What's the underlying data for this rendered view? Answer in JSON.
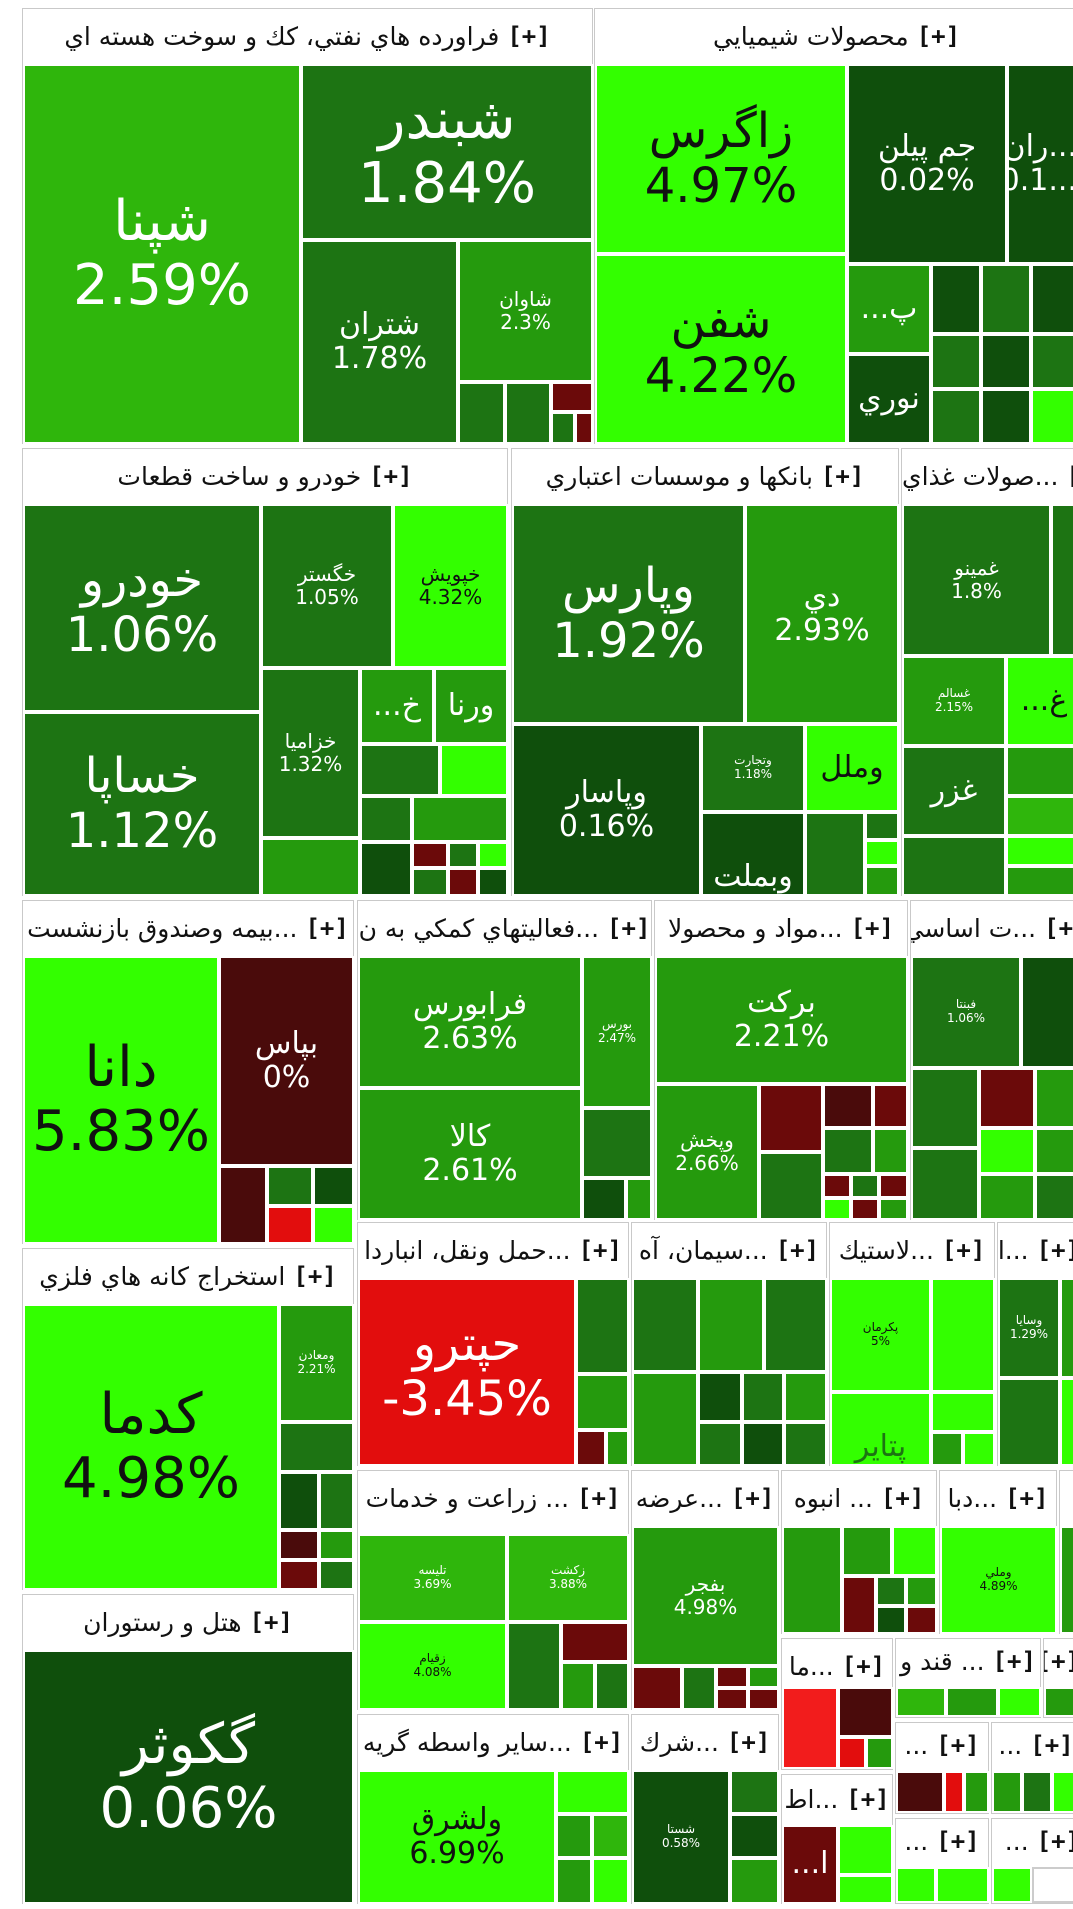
{
  "colors": {
    "bright_green": "#33ff00",
    "medium_green": "#2fb60c",
    "green": "#259a0d",
    "dark_green": "#1d7413",
    "deep_green": "#0f4f0c",
    "dark_red": "#6b0a0a",
    "red": "#e20d0d"
  },
  "expand_label": "[+]",
  "sectors": {
    "oil": {
      "title": "فراورده هاي نفتي، كك و سوخت هسته اي",
      "tiles": [
        {
          "symbol": "شپنا",
          "change": "2.59%"
        },
        {
          "symbol": "شبندر",
          "change": "1.84%"
        },
        {
          "symbol": "شتران",
          "change": "1.78%"
        },
        {
          "symbol": "شاوان",
          "change": "2.3%"
        }
      ]
    },
    "chemical": {
      "title": "محصولات شيميايي",
      "tiles": [
        {
          "symbol": "زاگرس",
          "change": "4.97%"
        },
        {
          "symbol": "جم پيلن",
          "change": "0.02%"
        },
        {
          "symbol": "...ران",
          "change": "0.1..."
        },
        {
          "symbol": "شفن",
          "change": "4.22%"
        },
        {
          "symbol": "پ..."
        },
        {
          "symbol": "نوري"
        }
      ]
    },
    "auto": {
      "title": "خودرو و ساخت قطعات",
      "tiles": [
        {
          "symbol": "خودرو",
          "change": "1.06%"
        },
        {
          "symbol": "خگستر",
          "change": "1.05%"
        },
        {
          "symbol": "خپويش",
          "change": "4.32%"
        },
        {
          "symbol": "خساپا",
          "change": "1.12%"
        },
        {
          "symbol": "خزاميا",
          "change": "1.32%"
        },
        {
          "symbol": "خ..."
        },
        {
          "symbol": "ورنا"
        }
      ]
    },
    "banks": {
      "title": "بانكها و موسسات اعتباري",
      "tiles": [
        {
          "symbol": "وپارس",
          "change": "1.92%"
        },
        {
          "symbol": "دي",
          "change": "2.93%"
        },
        {
          "symbol": "وپاسار",
          "change": "0.16%"
        },
        {
          "symbol": "وتجارت",
          "change": "1.18%"
        },
        {
          "symbol": "وملل"
        },
        {
          "symbol": "وبملت"
        }
      ]
    },
    "food": {
      "title": "...صولات غذاي",
      "tiles": [
        {
          "symbol": "غمينو",
          "change": "1.8%"
        },
        {
          "symbol": "غسالم",
          "change": "2.15%"
        },
        {
          "symbol": "غ..."
        },
        {
          "symbol": "غزر"
        }
      ]
    },
    "insurance": {
      "title": "...بيمه وصندوق بازنشست",
      "tiles": [
        {
          "symbol": "دانا",
          "change": "5.83%"
        },
        {
          "symbol": "بپاس",
          "change": "0%"
        }
      ]
    },
    "support": {
      "title": "...فعاليتهاي كمكي به ن",
      "tiles": [
        {
          "symbol": "فرابورس",
          "change": "2.63%"
        },
        {
          "symbol": "بورس",
          "change": "2.47%"
        },
        {
          "symbol": "كالا",
          "change": "2.61%"
        }
      ]
    },
    "pharma": {
      "title": "...مواد و محصولا",
      "tiles": [
        {
          "symbol": "بركت",
          "change": "2.21%"
        },
        {
          "symbol": "وپخش",
          "change": "2.66%"
        }
      ]
    },
    "basic": {
      "title": "...ت اساسي",
      "tiles": [
        {
          "symbol": "فبنتا",
          "change": "1.06%"
        }
      ]
    },
    "mining": {
      "title": "استخراج كانه هاي فلزي",
      "tiles": [
        {
          "symbol": "كدما",
          "change": "4.98%"
        },
        {
          "symbol": "ومعادن",
          "change": "2.21%"
        }
      ]
    },
    "transport": {
      "title": "...حمل ونقل، انباردا",
      "tiles": [
        {
          "symbol": "حپترو",
          "change": "-3.45%"
        }
      ]
    },
    "cement": {
      "title": "...سيمان، آه"
    },
    "rubber": {
      "title": "...لاستيك",
      "tiles": [
        {
          "symbol": "پكرمان",
          "change": "5%"
        },
        {
          "symbol": "پتاير"
        }
      ]
    },
    "capital": {
      "title": "...ايه",
      "tiles": [
        {
          "symbol": "وسايا",
          "change": "1.29%"
        }
      ]
    },
    "agri": {
      "title": "... زراعت و خدمات",
      "tiles": [
        {
          "symbol": "تليسه",
          "change": "3.69%"
        },
        {
          "symbol": "زكشت",
          "change": "3.88%"
        },
        {
          "symbol": "زقيام",
          "change": "4.08%"
        }
      ]
    },
    "supply": {
      "title": "...عرضه",
      "tiles": [
        {
          "symbol": "بفجر",
          "change": "4.98%"
        }
      ]
    },
    "mass": {
      "title": "... انبوه"
    },
    "dba": {
      "title": "...دبا",
      "tiles": [
        {
          "symbol": "وملي",
          "change": "4.89%"
        }
      ]
    },
    "hotel": {
      "title": "هتل و رستوران",
      "tiles": [
        {
          "symbol": "گكوثر",
          "change": "0.06%"
        }
      ]
    },
    "brokers": {
      "title": "...ساير واسطه گريه",
      "tiles": [
        {
          "symbol": "ولشرق",
          "change": "6.99%"
        }
      ]
    },
    "company": {
      "title": "...شرك",
      "tiles": [
        {
          "symbol": "شستا",
          "change": "0.58%"
        }
      ]
    },
    "ma": {
      "title": "...ما"
    },
    "sugar": {
      "title": "... قند و"
    },
    "at": {
      "title": "...اط",
      "tiles": [
        {
          "symbol": "ا..."
        }
      ]
    },
    "misc1": {
      "title": "..."
    },
    "misc2": {
      "title": "..."
    },
    "misc3": {
      "title": "..."
    },
    "misc4": {
      "title": "..."
    }
  }
}
